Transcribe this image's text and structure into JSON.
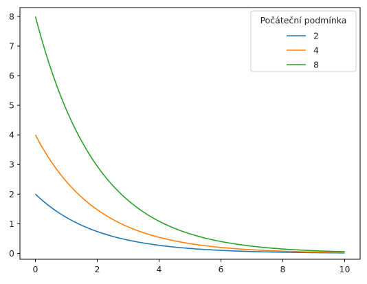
{
  "chart_data": {
    "type": "line",
    "x_range": [
      0,
      10
    ],
    "xticks": [
      0,
      2,
      4,
      6,
      8,
      10
    ],
    "yticks": [
      0,
      1,
      2,
      3,
      4,
      5,
      6,
      7,
      8
    ],
    "xlim": [
      -0.5,
      10.5
    ],
    "ylim": [
      -0.2,
      8.3
    ],
    "grid": false,
    "legend": {
      "title": "Počáteční podmínka",
      "placement": "top-right"
    },
    "series": [
      {
        "name": "2",
        "color": "#1f77b4",
        "x": [
          0,
          1,
          2,
          3,
          4,
          5,
          6,
          7,
          8,
          9,
          10
        ],
        "y": [
          2.0,
          1.213,
          0.736,
          0.446,
          0.271,
          0.164,
          0.1,
          0.06,
          0.037,
          0.022,
          0.013
        ]
      },
      {
        "name": "4",
        "color": "#ff7f0e",
        "x": [
          0,
          1,
          2,
          3,
          4,
          5,
          6,
          7,
          8,
          9,
          10
        ],
        "y": [
          4.0,
          2.426,
          1.472,
          0.893,
          0.541,
          0.328,
          0.199,
          0.121,
          0.073,
          0.044,
          0.027
        ]
      },
      {
        "name": "8",
        "color": "#2ca02c",
        "x": [
          0,
          1,
          2,
          3,
          4,
          5,
          6,
          7,
          8,
          9,
          10
        ],
        "y": [
          8.0,
          4.852,
          2.943,
          1.785,
          1.083,
          0.657,
          0.398,
          0.242,
          0.147,
          0.089,
          0.054
        ]
      }
    ]
  }
}
